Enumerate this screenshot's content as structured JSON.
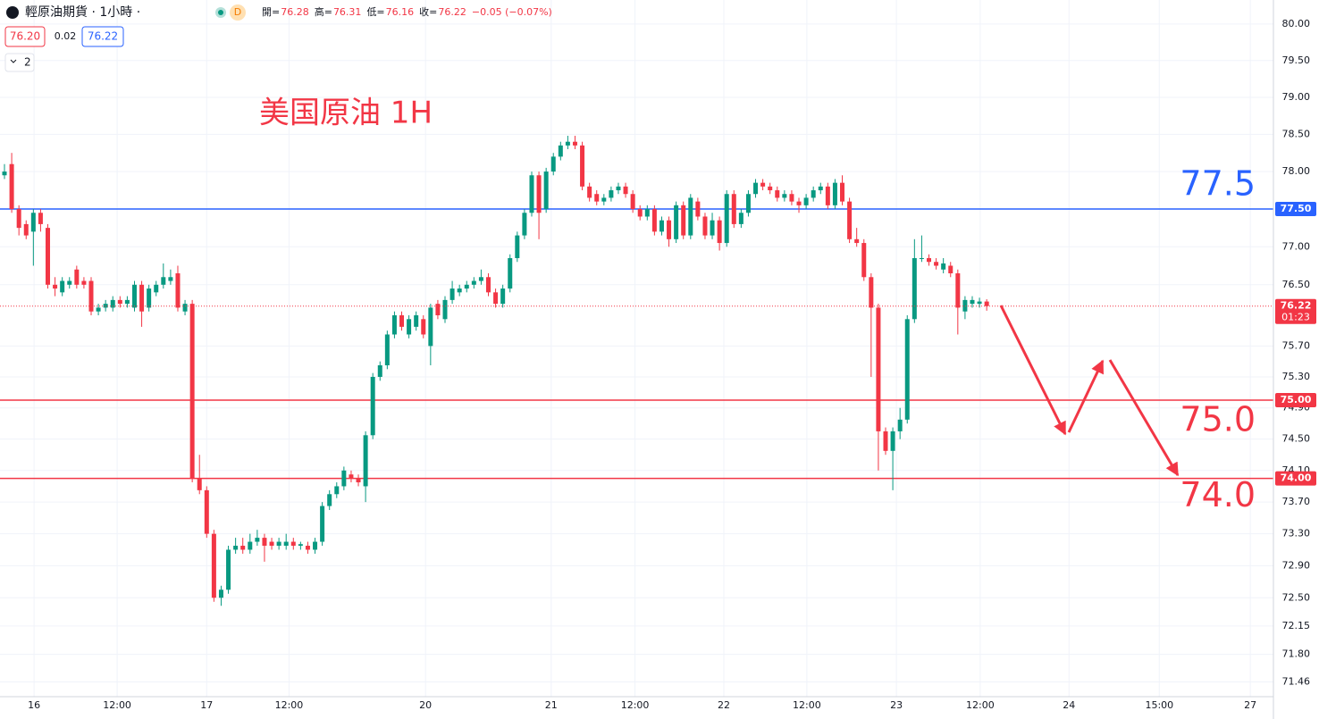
{
  "header": {
    "symbol": "輕原油期貨 · 1小時 ·",
    "badge": "D",
    "ohlc": [
      {
        "label": "開=",
        "value": "76.28"
      },
      {
        "label": "高=",
        "value": "76.31"
      },
      {
        "label": "低=",
        "value": "76.16"
      },
      {
        "label": "收=",
        "value": "76.22"
      }
    ],
    "change": "−0.05 (−0.07%)",
    "bid": "76.20",
    "spread": "0.02",
    "ask": "76.22",
    "indicators": "2"
  },
  "chart_data": {
    "type": "candlestick",
    "title": "美国原油 1H",
    "log": true,
    "grid": true,
    "up_color": "#089981",
    "down_color": "#f23645",
    "open": [
      77.95,
      78.1,
      77.5,
      77.3,
      77.2,
      77.45,
      77.25,
      76.5,
      76.4,
      76.5,
      76.7,
      76.55,
      76.55,
      76.15,
      76.2,
      76.2,
      76.3,
      76.25,
      76.2,
      76.5,
      76.2,
      76.4,
      76.5,
      76.55,
      76.65,
      76.15,
      76.25,
      74.0,
      73.85,
      73.3,
      72.5,
      72.6,
      73.1,
      73.15,
      73.1,
      73.2,
      73.25,
      73.2,
      73.15,
      73.15,
      73.2,
      73.15,
      73.15,
      73.1,
      73.2,
      73.65,
      73.8,
      73.9,
      74.05,
      74.0,
      73.9,
      74.55,
      75.3,
      75.45,
      75.85,
      76.1,
      75.85,
      75.95,
      76.05,
      75.7,
      76.25,
      76.05,
      76.3,
      76.4,
      76.45,
      76.5,
      76.55,
      76.6,
      76.4,
      76.25,
      76.45,
      76.85,
      77.15,
      77.45,
      77.95,
      77.5,
      78.0,
      78.2,
      78.35,
      78.4,
      78.35,
      77.8,
      77.7,
      77.6,
      77.65,
      77.75,
      77.8,
      77.7,
      77.5,
      77.4,
      77.5,
      77.2,
      77.35,
      77.1,
      77.55,
      77.15,
      77.6,
      77.4,
      77.15,
      77.35,
      77.05,
      77.7,
      77.3,
      77.45,
      77.7,
      77.85,
      77.8,
      77.75,
      77.65,
      77.7,
      77.6,
      77.55,
      77.65,
      77.75,
      77.8,
      77.55,
      77.85,
      77.6,
      77.1,
      77.05,
      76.6,
      76.2,
      74.6,
      74.35,
      74.6,
      74.75,
      76.05,
      76.85,
      76.85,
      76.8,
      76.7,
      76.75,
      76.65,
      76.15,
      76.25,
      76.25,
      76.28
    ],
    "high": [
      78.1,
      78.25,
      77.55,
      77.35,
      77.5,
      77.5,
      77.3,
      76.6,
      76.6,
      76.6,
      76.75,
      76.6,
      76.6,
      76.25,
      76.3,
      76.35,
      76.35,
      76.35,
      76.55,
      76.55,
      76.5,
      76.55,
      76.78,
      76.7,
      76.75,
      76.3,
      76.3,
      74.3,
      73.9,
      73.35,
      72.65,
      73.15,
      73.25,
      73.25,
      73.3,
      73.35,
      73.3,
      73.25,
      73.25,
      73.3,
      73.25,
      73.2,
      73.2,
      73.25,
      73.7,
      73.85,
      73.95,
      74.15,
      74.1,
      74.05,
      74.6,
      75.35,
      75.5,
      75.9,
      76.15,
      76.15,
      76.1,
      76.15,
      76.1,
      76.25,
      76.3,
      76.35,
      76.55,
      76.5,
      76.55,
      76.6,
      76.7,
      76.65,
      76.45,
      76.5,
      76.9,
      77.2,
      77.5,
      78.0,
      78.0,
      78.05,
      78.25,
      78.4,
      78.48,
      78.48,
      78.4,
      77.85,
      77.75,
      77.7,
      77.8,
      77.85,
      77.85,
      77.75,
      77.55,
      77.55,
      77.55,
      77.4,
      77.4,
      77.6,
      77.6,
      77.7,
      77.65,
      77.45,
      77.45,
      77.4,
      77.75,
      77.75,
      77.5,
      77.75,
      77.9,
      77.9,
      77.85,
      77.8,
      77.75,
      77.75,
      77.65,
      77.7,
      77.8,
      77.85,
      77.85,
      77.9,
      77.95,
      77.65,
      77.25,
      77.1,
      76.65,
      76.25,
      74.65,
      74.65,
      74.9,
      76.1,
      77.1,
      77.15,
      76.9,
      76.85,
      76.85,
      76.8,
      76.7,
      76.35,
      76.35,
      76.33,
      76.31
    ],
    "low": [
      77.9,
      77.45,
      77.15,
      77.1,
      76.75,
      77.2,
      76.45,
      76.35,
      76.35,
      76.45,
      76.45,
      76.45,
      76.1,
      76.1,
      76.15,
      76.15,
      76.2,
      76.2,
      76.15,
      75.95,
      76.15,
      76.35,
      76.45,
      76.5,
      76.15,
      76.1,
      73.95,
      73.8,
      73.25,
      72.45,
      72.4,
      72.55,
      73.05,
      73.05,
      73.05,
      73.15,
      72.95,
      73.1,
      73.1,
      73.1,
      73.1,
      73.1,
      73.05,
      73.05,
      73.15,
      73.6,
      73.75,
      73.85,
      73.95,
      73.9,
      73.7,
      74.5,
      75.25,
      75.4,
      75.8,
      75.9,
      75.8,
      75.9,
      75.8,
      75.45,
      76.05,
      76.0,
      76.25,
      76.35,
      76.4,
      76.45,
      76.5,
      76.35,
      76.2,
      76.2,
      76.4,
      76.8,
      77.1,
      77.4,
      77.1,
      77.45,
      77.95,
      78.15,
      78.3,
      78.3,
      77.75,
      77.6,
      77.55,
      77.55,
      77.6,
      77.7,
      77.65,
      77.45,
      77.35,
      77.35,
      77.15,
      77.15,
      77.0,
      77.05,
      77.1,
      77.1,
      77.35,
      77.1,
      77.1,
      76.95,
      77.0,
      77.25,
      77.25,
      77.4,
      77.65,
      77.75,
      77.7,
      77.6,
      77.6,
      77.55,
      77.45,
      77.5,
      77.6,
      77.7,
      77.5,
      77.5,
      77.55,
      77.05,
      77.0,
      76.55,
      75.3,
      74.1,
      74.3,
      73.85,
      74.5,
      74.7,
      76.0,
      76.8,
      76.75,
      76.7,
      76.65,
      76.6,
      75.85,
      76.05,
      76.2,
      76.2,
      76.16
    ],
    "close": [
      78.0,
      77.5,
      77.25,
      77.15,
      77.45,
      77.3,
      76.5,
      76.45,
      76.55,
      76.55,
      76.5,
      76.5,
      76.15,
      76.2,
      76.25,
      76.3,
      76.25,
      76.3,
      76.5,
      76.15,
      76.45,
      76.5,
      76.6,
      76.6,
      76.2,
      76.25,
      74.0,
      73.85,
      73.3,
      72.5,
      72.6,
      73.1,
      73.15,
      73.1,
      73.2,
      73.25,
      73.15,
      73.15,
      73.2,
      73.2,
      73.15,
      73.17,
      73.1,
      73.2,
      73.65,
      73.8,
      73.9,
      74.1,
      74.0,
      73.95,
      74.55,
      75.3,
      75.45,
      75.85,
      76.1,
      75.95,
      76.05,
      76.1,
      75.85,
      76.2,
      76.1,
      76.3,
      76.45,
      76.45,
      76.5,
      76.55,
      76.6,
      76.4,
      76.25,
      76.45,
      76.85,
      77.15,
      77.45,
      77.95,
      77.45,
      78.0,
      78.2,
      78.35,
      78.4,
      78.35,
      77.8,
      77.65,
      77.6,
      77.65,
      77.75,
      77.8,
      77.7,
      77.5,
      77.4,
      77.5,
      77.2,
      77.35,
      77.1,
      77.55,
      77.15,
      77.65,
      77.4,
      77.15,
      77.35,
      77.05,
      77.7,
      77.3,
      77.45,
      77.7,
      77.85,
      77.8,
      77.75,
      77.65,
      77.7,
      77.6,
      77.55,
      77.65,
      77.75,
      77.8,
      77.55,
      77.85,
      77.6,
      77.1,
      77.05,
      76.6,
      76.2,
      74.6,
      74.35,
      74.6,
      74.75,
      76.05,
      76.85,
      76.85,
      76.8,
      76.75,
      76.78,
      76.65,
      76.2,
      76.3,
      76.3,
      76.28,
      76.22
    ],
    "xlim": [
      -0.62,
      175.7
    ],
    "xticks": [
      {
        "value": 4.1,
        "label": "16"
      },
      {
        "value": 15.6,
        "label": "12:00"
      },
      {
        "value": 28,
        "label": "17"
      },
      {
        "value": 39.4,
        "label": "12:00"
      },
      {
        "value": 58.3,
        "label": "20"
      },
      {
        "value": 75.7,
        "label": "21"
      },
      {
        "value": 87.3,
        "label": "12:00"
      },
      {
        "value": 99.6,
        "label": "22"
      },
      {
        "value": 111.1,
        "label": "12:00"
      },
      {
        "value": 123.5,
        "label": "23"
      },
      {
        "value": 135.1,
        "label": "12:00"
      },
      {
        "value": 147.4,
        "label": "24"
      },
      {
        "value": 159.9,
        "label": "15:00"
      },
      {
        "value": 172.5,
        "label": "27"
      }
    ],
    "ylim": [
      71.28,
      80.33
    ],
    "yticks": [
      {
        "value": 80,
        "label": "80.00"
      },
      {
        "value": 79.5,
        "label": "79.50"
      },
      {
        "value": 79,
        "label": "79.00"
      },
      {
        "value": 78.5,
        "label": "78.50"
      },
      {
        "value": 78,
        "label": "78.00"
      },
      {
        "value": 77,
        "label": "77.00"
      },
      {
        "value": 76.5,
        "label": "76.50"
      },
      {
        "value": 75.7,
        "label": "75.70"
      },
      {
        "value": 75.3,
        "label": "75.30"
      },
      {
        "value": 74.9,
        "label": "74.90"
      },
      {
        "value": 74.5,
        "label": "74.50"
      },
      {
        "value": 74.1,
        "label": "74.10"
      },
      {
        "value": 73.7,
        "label": "73.70"
      },
      {
        "value": 73.3,
        "label": "73.30"
      },
      {
        "value": 72.9,
        "label": "72.90"
      },
      {
        "value": 72.5,
        "label": "72.50"
      },
      {
        "value": 72.15,
        "label": "72.15"
      },
      {
        "value": 71.8,
        "label": "71.80"
      },
      {
        "value": 71.46,
        "label": "71.46"
      }
    ],
    "hlines": [
      {
        "value": 77.5,
        "label": "77.50",
        "annotation": "77.5",
        "color": "#2962ff"
      },
      {
        "value": 75,
        "label": "75.00",
        "annotation": "75.0",
        "color": "#f23645"
      },
      {
        "value": 74,
        "label": "74.00",
        "annotation": "74.0",
        "color": "#f23645"
      }
    ],
    "last_price": {
      "value": 76.22,
      "label": "76.22",
      "countdown": "01:23",
      "color": "#f23645"
    }
  }
}
